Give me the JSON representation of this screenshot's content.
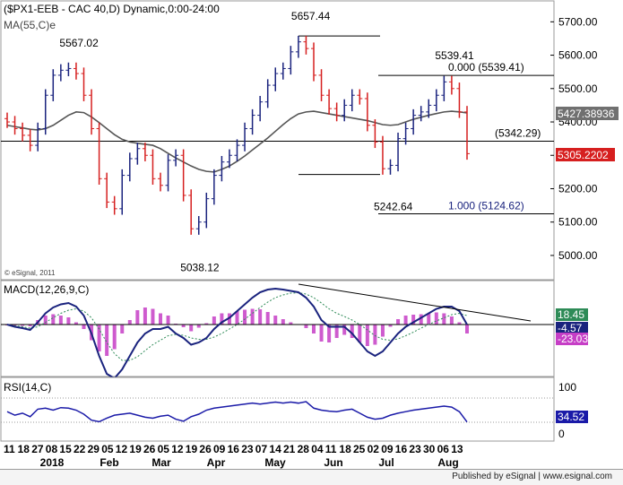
{
  "chart_data": {
    "type": "candlestick",
    "title": "($PX1-EEB - CAC 40,D) Dynamic,0:00-24:00",
    "watermark": "© eSignal, 2011",
    "footer": "Published by eSignal | www.esignal.com",
    "price_axis": {
      "ylim": [
        4930,
        5760
      ],
      "ticks": [
        "5700.00",
        "5600.00",
        "5500.00",
        "5400.00",
        "5300.00",
        "5200.00",
        "5100.00",
        "5000.00"
      ]
    },
    "ma_label": "MA(55,C)e",
    "ma_value": "5427.38936",
    "last_price": "5305.2202",
    "ma_series": [
      5390,
      5386,
      5382,
      5378,
      5376,
      5380,
      5390,
      5405,
      5420,
      5430,
      5428,
      5415,
      5398,
      5380,
      5362,
      5348,
      5340,
      5336,
      5333,
      5330,
      5320,
      5306,
      5292,
      5280,
      5268,
      5258,
      5252,
      5250,
      5258,
      5268,
      5282,
      5298,
      5316,
      5334,
      5352,
      5372,
      5392,
      5410,
      5424,
      5430,
      5432,
      5428,
      5424,
      5420,
      5416,
      5412,
      5408,
      5404,
      5398,
      5392,
      5390,
      5392,
      5400,
      5408,
      5414,
      5420,
      5425,
      5430,
      5432,
      5430,
      5427
    ],
    "close_series": [
      5400,
      5380,
      5360,
      5330,
      5380,
      5480,
      5540,
      5555,
      5560,
      5545,
      5480,
      5380,
      5230,
      5160,
      5140,
      5240,
      5290,
      5320,
      5300,
      5230,
      5210,
      5285,
      5300,
      5180,
      5080,
      5100,
      5170,
      5240,
      5280,
      5300,
      5330,
      5380,
      5420,
      5460,
      5510,
      5545,
      5560,
      5610,
      5640,
      5620,
      5540,
      5480,
      5440,
      5420,
      5450,
      5480,
      5470,
      5390,
      5340,
      5260,
      5270,
      5350,
      5380,
      5420,
      5430,
      5450,
      5480,
      5520,
      5500,
      5430,
      5305
    ],
    "annotations": [
      {
        "label": "5567.02",
        "date_index": 8,
        "price": 5567.02
      },
      {
        "label": "5657.44",
        "date_index": 38,
        "price": 5657.44
      },
      {
        "label": "5539.41",
        "date_index": 57,
        "price": 5539.41
      },
      {
        "label": "5038.12",
        "date_index": 24,
        "price": 5038.12
      },
      {
        "label": "5242.64",
        "date_index": 49,
        "price": 5242.64
      }
    ],
    "levels": [
      {
        "label": "0.000 (5539.41)",
        "price": 5539.41
      },
      {
        "label": "(5342.29)",
        "price": 5342.29
      },
      {
        "label": "1.000 (5124.62)",
        "price": 5124.62
      }
    ],
    "macd": {
      "label": "MACD(12,26,9,C)",
      "values": [
        "18.45",
        "-4.57",
        "-23.03"
      ],
      "macd_series": [
        0,
        -5,
        -8,
        -12,
        5,
        25,
        38,
        45,
        48,
        40,
        20,
        -20,
        -70,
        -110,
        -120,
        -100,
        -70,
        -40,
        -20,
        -10,
        -10,
        -5,
        -20,
        -30,
        -45,
        -40,
        -30,
        -10,
        5,
        15,
        30,
        45,
        60,
        72,
        78,
        80,
        78,
        75,
        72,
        60,
        40,
        10,
        -5,
        -5,
        -5,
        -20,
        -40,
        -60,
        -70,
        -60,
        -40,
        -20,
        -5,
        5,
        15,
        25,
        35,
        40,
        40,
        30,
        0
      ],
      "signal_series": [
        0,
        -3,
        -5,
        -8,
        -5,
        5,
        15,
        25,
        32,
        35,
        30,
        15,
        -10,
        -40,
        -65,
        -80,
        -80,
        -72,
        -58,
        -45,
        -35,
        -25,
        -22,
        -24,
        -30,
        -33,
        -33,
        -28,
        -20,
        -10,
        0,
        12,
        25,
        38,
        50,
        60,
        66,
        70,
        71,
        68,
        60,
        48,
        35,
        25,
        18,
        10,
        0,
        -12,
        -25,
        -33,
        -35,
        -32,
        -25,
        -17,
        -8,
        0,
        8,
        15,
        22,
        25,
        20
      ]
    },
    "rsi": {
      "label": "RSI(14,C)",
      "value": "34.52",
      "ticks": [
        "100",
        "0"
      ],
      "series": [
        55,
        48,
        52,
        45,
        60,
        62,
        58,
        63,
        62,
        58,
        50,
        38,
        35,
        42,
        48,
        50,
        52,
        48,
        44,
        42,
        46,
        48,
        40,
        36,
        45,
        50,
        58,
        62,
        64,
        66,
        68,
        70,
        72,
        70,
        72,
        74,
        72,
        74,
        72,
        75,
        62,
        58,
        56,
        55,
        58,
        60,
        52,
        44,
        40,
        42,
        48,
        52,
        55,
        58,
        60,
        62,
        64,
        66,
        64,
        55,
        34.52
      ]
    },
    "x_axis": {
      "day_ticks": [
        "11",
        "18",
        "27",
        "08",
        "15",
        "22",
        "29",
        "05",
        "12",
        "19",
        "26",
        "05",
        "12",
        "19",
        "26",
        "09",
        "16",
        "23",
        "07",
        "14",
        "21",
        "28",
        "04",
        "11",
        "18",
        "25",
        "02",
        "09",
        "16",
        "23",
        "30",
        "06",
        "13"
      ],
      "months": [
        "2018",
        "Feb",
        "Mar",
        "Apr",
        "May",
        "Jun",
        "Jul",
        "Aug"
      ]
    }
  }
}
